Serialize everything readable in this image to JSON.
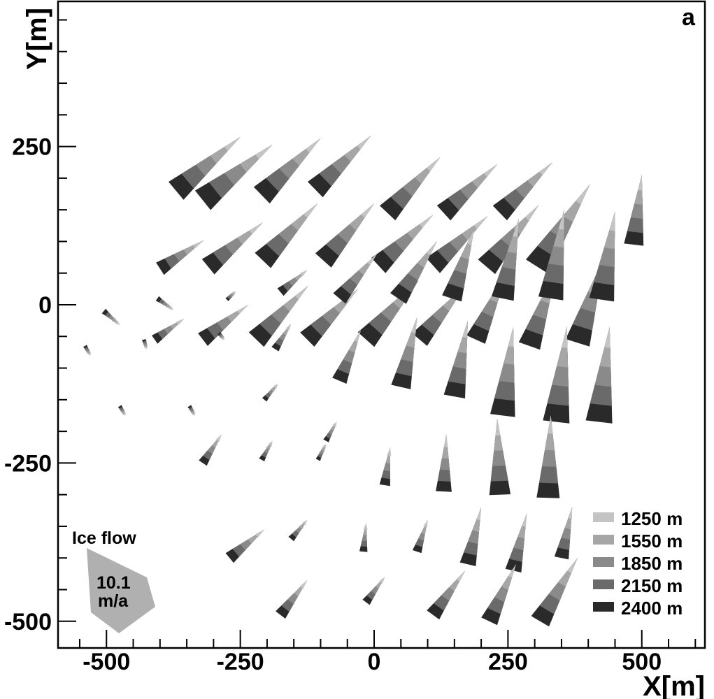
{
  "chart_data": {
    "type": "quiver",
    "panel_label": "a",
    "xlabel": "X[m]",
    "ylabel": "Y[m]",
    "xlim": [
      -500,
      500
    ],
    "ylim": [
      -500,
      400
    ],
    "xticks": [
      -500,
      -250,
      0,
      250,
      500
    ],
    "yticks": [
      -500,
      -250,
      0,
      250
    ],
    "x_tick_labels": [
      "-500",
      "-250",
      "0",
      "250",
      "500"
    ],
    "y_tick_labels": [
      "-500",
      "-250",
      "0",
      "250"
    ],
    "grid": false,
    "legend_position": "bottom-right",
    "series": [
      {
        "name": "1250 m",
        "color": "#c4c4c4"
      },
      {
        "name": "1550 m",
        "color": "#a6a6a6"
      },
      {
        "name": "1850 m",
        "color": "#8a8a8a"
      },
      {
        "name": "2150 m",
        "color": "#6a6a6a"
      },
      {
        "name": "2400 m",
        "color": "#2a2a2a"
      }
    ],
    "scale_arrow": {
      "title": "Ice flow",
      "value_label": "10.1",
      "unit_label": "m/a",
      "color": "#b0b0b0"
    },
    "arrows": [
      {
        "x": -370,
        "y": 180,
        "dx": 120,
        "dy": 85
      },
      {
        "x": -320,
        "y": 165,
        "dx": 130,
        "dy": 88
      },
      {
        "x": -210,
        "y": 173,
        "dx": 110,
        "dy": 90
      },
      {
        "x": -110,
        "y": 182,
        "dx": 104,
        "dy": 85
      },
      {
        "x": 25,
        "y": 145,
        "dx": 98,
        "dy": 88
      },
      {
        "x": 130,
        "y": 145,
        "dx": 100,
        "dy": 77
      },
      {
        "x": 235,
        "y": 145,
        "dx": 98,
        "dy": 80
      },
      {
        "x": -400,
        "y": 57,
        "dx": 82,
        "dy": 45
      },
      {
        "x": -310,
        "y": 60,
        "dx": 102,
        "dy": 70
      },
      {
        "x": -208,
        "y": 70,
        "dx": 102,
        "dy": 90
      },
      {
        "x": -95,
        "y": 70,
        "dx": 95,
        "dy": 90
      },
      {
        "x": 8,
        "y": 62,
        "dx": 102,
        "dy": 80
      },
      {
        "x": 110,
        "y": 62,
        "dx": 102,
        "dy": 78
      },
      {
        "x": 210,
        "y": 60,
        "dx": 97,
        "dy": 97
      },
      {
        "x": 305,
        "y": 60,
        "dx": 98,
        "dy": 130
      },
      {
        "x": -410,
        "y": -55,
        "dx": 55,
        "dy": 33
      },
      {
        "x": -320,
        "y": -55,
        "dx": 85,
        "dy": 55
      },
      {
        "x": -220,
        "y": -55,
        "dx": 97,
        "dy": 85
      },
      {
        "x": -125,
        "y": -55,
        "dx": 95,
        "dy": 80
      },
      {
        "x": -15,
        "y": -55,
        "dx": 98,
        "dy": 93
      },
      {
        "x": 85,
        "y": -55,
        "dx": 85,
        "dy": 85
      },
      {
        "x": 190,
        "y": -55,
        "dx": 57,
        "dy": 105
      },
      {
        "x": 290,
        "y": -65,
        "dx": 50,
        "dy": 120
      },
      {
        "x": 380,
        "y": -60,
        "dx": 50,
        "dy": 135
      },
      {
        "x": -505,
        "y": -10,
        "dx": 30,
        "dy": -22
      },
      {
        "x": -405,
        "y": 10,
        "dx": 30,
        "dy": -18
      },
      {
        "x": -275,
        "y": 8,
        "dx": 16,
        "dy": 13
      },
      {
        "x": -175,
        "y": 20,
        "dx": 50,
        "dy": 35
      },
      {
        "x": -65,
        "y": 10,
        "dx": 70,
        "dy": 70
      },
      {
        "x": 45,
        "y": 10,
        "dx": 72,
        "dy": 90
      },
      {
        "x": 145,
        "y": 10,
        "dx": 42,
        "dy": 110
      },
      {
        "x": 240,
        "y": 10,
        "dx": 30,
        "dy": 125
      },
      {
        "x": 330,
        "y": 10,
        "dx": 25,
        "dy": 140
      },
      {
        "x": 425,
        "y": 8,
        "dx": 25,
        "dy": 140
      },
      {
        "x": 485,
        "y": 95,
        "dx": 15,
        "dy": 110
      },
      {
        "x": -540,
        "y": -65,
        "dx": 10,
        "dy": -15
      },
      {
        "x": -430,
        "y": -55,
        "dx": 5,
        "dy": -15
      },
      {
        "x": -290,
        "y": -45,
        "dx": 10,
        "dy": -10
      },
      {
        "x": -185,
        "y": -70,
        "dx": 30,
        "dy": 40
      },
      {
        "x": -65,
        "y": -120,
        "dx": 40,
        "dy": 80
      },
      {
        "x": 50,
        "y": -130,
        "dx": 30,
        "dy": 110
      },
      {
        "x": 150,
        "y": -145,
        "dx": 25,
        "dy": 120
      },
      {
        "x": 240,
        "y": -175,
        "dx": 20,
        "dy": 140
      },
      {
        "x": 340,
        "y": -185,
        "dx": 20,
        "dy": 150
      },
      {
        "x": 420,
        "y": -185,
        "dx": 20,
        "dy": 150
      },
      {
        "x": -475,
        "y": -160,
        "dx": 10,
        "dy": -15
      },
      {
        "x": -345,
        "y": -160,
        "dx": 10,
        "dy": -15
      },
      {
        "x": -205,
        "y": -150,
        "dx": 25,
        "dy": 25
      },
      {
        "x": -90,
        "y": -215,
        "dx": 20,
        "dy": 30
      },
      {
        "x": 20,
        "y": -285,
        "dx": 10,
        "dy": 60
      },
      {
        "x": 130,
        "y": -295,
        "dx": 5,
        "dy": 90
      },
      {
        "x": 235,
        "y": -300,
        "dx": -5,
        "dy": 120
      },
      {
        "x": 325,
        "y": -305,
        "dx": 5,
        "dy": 130
      },
      {
        "x": -320,
        "y": -250,
        "dx": 35,
        "dy": 45
      },
      {
        "x": -210,
        "y": -245,
        "dx": 20,
        "dy": 30
      },
      {
        "x": -105,
        "y": -245,
        "dx": 15,
        "dy": 25
      },
      {
        "x": -270,
        "y": -400,
        "dx": 65,
        "dy": 45
      },
      {
        "x": -155,
        "y": -370,
        "dx": 30,
        "dy": 30
      },
      {
        "x": -20,
        "y": -390,
        "dx": 5,
        "dy": 45
      },
      {
        "x": 80,
        "y": -390,
        "dx": 20,
        "dy": 50
      },
      {
        "x": 175,
        "y": -410,
        "dx": 25,
        "dy": 90
      },
      {
        "x": 260,
        "y": -420,
        "dx": 25,
        "dy": 90
      },
      {
        "x": 350,
        "y": -400,
        "dx": 20,
        "dy": 80
      },
      {
        "x": -175,
        "y": -490,
        "dx": 50,
        "dy": 55
      },
      {
        "x": -15,
        "y": -470,
        "dx": 35,
        "dy": 40
      },
      {
        "x": 110,
        "y": -490,
        "dx": 60,
        "dy": 70
      },
      {
        "x": 215,
        "y": -500,
        "dx": 50,
        "dy": 90
      },
      {
        "x": 310,
        "y": -500,
        "dx": 70,
        "dy": 100
      }
    ]
  }
}
